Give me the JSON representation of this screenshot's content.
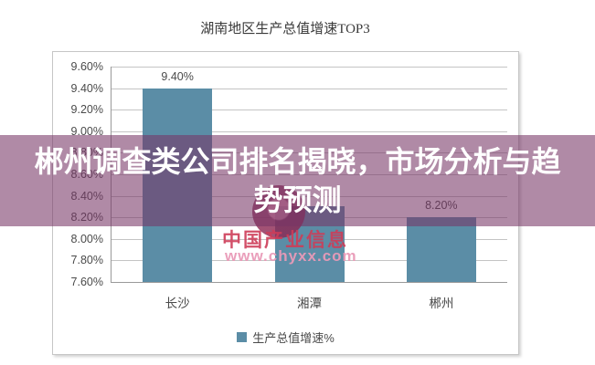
{
  "banner": {
    "text": "郴州调查类公司排名揭晓，市场分析与趋势预测",
    "bg_color": "rgba(119,53,102,0.58)",
    "text_color": "#ffffff"
  },
  "watermark": {
    "brand": "中国产业信息",
    "url": "www.chyxx.com",
    "brand_color": "rgba(205,60,88,0.9)",
    "url_color": "rgba(233,154,183,0.95)"
  },
  "chart_data": {
    "type": "bar",
    "title": "湖南地区生产总值增速TOP3",
    "categories": [
      "长沙",
      "湘潭",
      "郴州"
    ],
    "series": [
      {
        "name": "生产总值增速%",
        "values": [
          9.4,
          8.3,
          8.2
        ]
      }
    ],
    "data_labels": [
      "9.40%",
      "",
      "8.20%"
    ],
    "y_ticks": [
      "9.60%",
      "9.40%",
      "9.20%",
      "9.00%",
      "8.80%",
      "8.60%",
      "8.40%",
      "8.20%",
      "8.00%",
      "7.80%",
      "7.60%"
    ],
    "ylim": [
      7.6,
      9.6
    ],
    "xlabel": "",
    "ylabel": "",
    "grid": true,
    "legend": [
      "生产总值增速%"
    ],
    "legend_position": "bottom",
    "bar_color": "#5b8da6"
  }
}
